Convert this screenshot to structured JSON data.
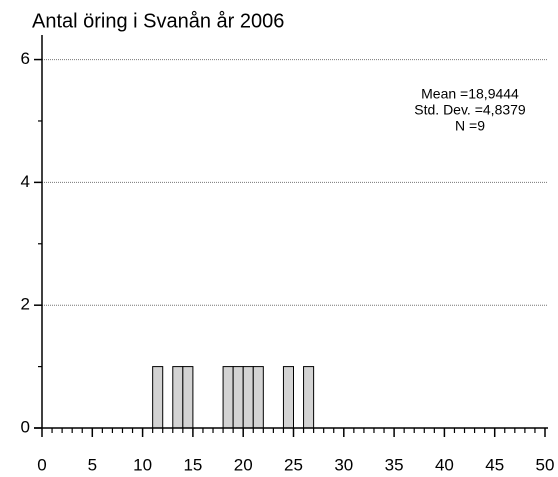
{
  "chart_data": {
    "type": "histogram",
    "title": "Antal öring i Svanån år 2006",
    "annotations": [
      "Mean =18,9444",
      "Std. Dev. =4,8379",
      "N =9"
    ],
    "bins": [
      11,
      12,
      13,
      14,
      15,
      16,
      17,
      18,
      19,
      20,
      21,
      22,
      23,
      24,
      25,
      26,
      27
    ],
    "values": [
      1,
      0,
      1,
      1,
      0,
      0,
      0,
      1,
      1,
      1,
      1,
      0,
      0,
      1,
      0,
      1
    ],
    "color": "#d3d3d3",
    "xlim": [
      0,
      50
    ],
    "xticks": [
      0,
      5,
      10,
      15,
      20,
      25,
      30,
      35,
      40,
      45,
      50
    ],
    "ylim": [
      0,
      6.4
    ],
    "yticks": [
      0,
      2,
      4,
      6
    ],
    "grid": true
  }
}
